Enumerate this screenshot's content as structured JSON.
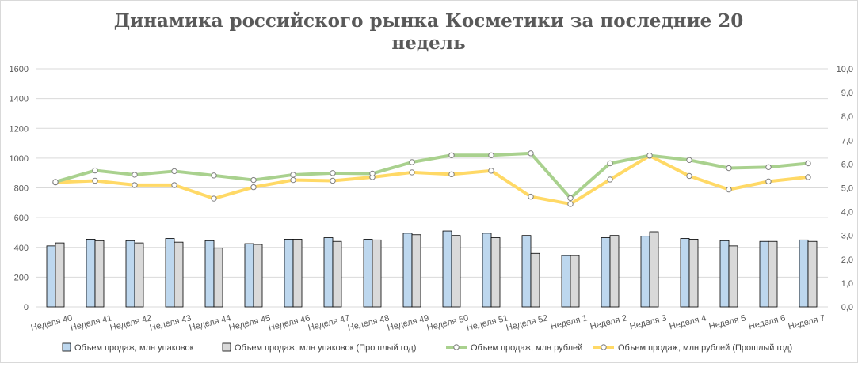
{
  "chart_data": {
    "type": "bar",
    "title_line1": "Динамика российского рынка Косметики за последние 20",
    "title_line2": "недель",
    "categories": [
      "Неделя 40",
      "Неделя 41",
      "Неделя 42",
      "Неделя 43",
      "Неделя 44",
      "Неделя 45",
      "Неделя 46",
      "Неделя 47",
      "Неделя 48",
      "Неделя 49",
      "Неделя 50",
      "Неделя 51",
      "Неделя 52",
      "Неделя 1",
      "Неделя 2",
      "Неделя 3",
      "Неделя 4",
      "Неделя 5",
      "Неделя 6",
      "Неделя 7"
    ],
    "y_left": {
      "min": 0,
      "max": 1600,
      "step": 200,
      "tick_labels": [
        "0",
        "200",
        "400",
        "600",
        "800",
        "1000",
        "1200",
        "1400",
        "1600"
      ]
    },
    "y_right": {
      "min": 0,
      "max": 10,
      "step": 1,
      "tick_labels": [
        "0,0",
        "1,0",
        "2,0",
        "3,0",
        "4,0",
        "5,0",
        "6,0",
        "7,0",
        "8,0",
        "9,0",
        "10,0"
      ]
    },
    "grid": true,
    "legend_position": "bottom",
    "series": [
      {
        "name": "Объем продаж, млн упаковок",
        "type": "bar",
        "axis": "left",
        "color": "#bdd7ee",
        "values": [
          410,
          455,
          445,
          460,
          445,
          425,
          455,
          465,
          455,
          495,
          510,
          495,
          480,
          345,
          465,
          475,
          460,
          445,
          440,
          450
        ]
      },
      {
        "name": "Объем продаж, млн упаковок (Прошлый год)",
        "type": "bar",
        "axis": "left",
        "color": "#d9d9d9",
        "values": [
          430,
          445,
          430,
          435,
          395,
          420,
          455,
          440,
          450,
          485,
          480,
          465,
          360,
          345,
          480,
          505,
          455,
          410,
          440,
          440
        ]
      },
      {
        "name": "Объем продаж, млн рублей",
        "type": "line",
        "axis": "right",
        "color": "#a9d18e",
        "values": [
          5.25,
          5.73,
          5.55,
          5.7,
          5.52,
          5.33,
          5.55,
          5.62,
          5.6,
          6.08,
          6.37,
          6.37,
          6.45,
          4.57,
          6.03,
          6.36,
          6.17,
          5.83,
          5.87,
          6.03
        ]
      },
      {
        "name": "Объем продаж, млн рублей (Прошлый год)",
        "type": "line",
        "axis": "right",
        "color": "#ffd966",
        "values": [
          5.23,
          5.3,
          5.12,
          5.12,
          4.55,
          5.03,
          5.33,
          5.3,
          5.45,
          5.65,
          5.57,
          5.72,
          4.63,
          4.32,
          5.35,
          6.35,
          5.5,
          4.93,
          5.27,
          5.45
        ]
      }
    ]
  }
}
